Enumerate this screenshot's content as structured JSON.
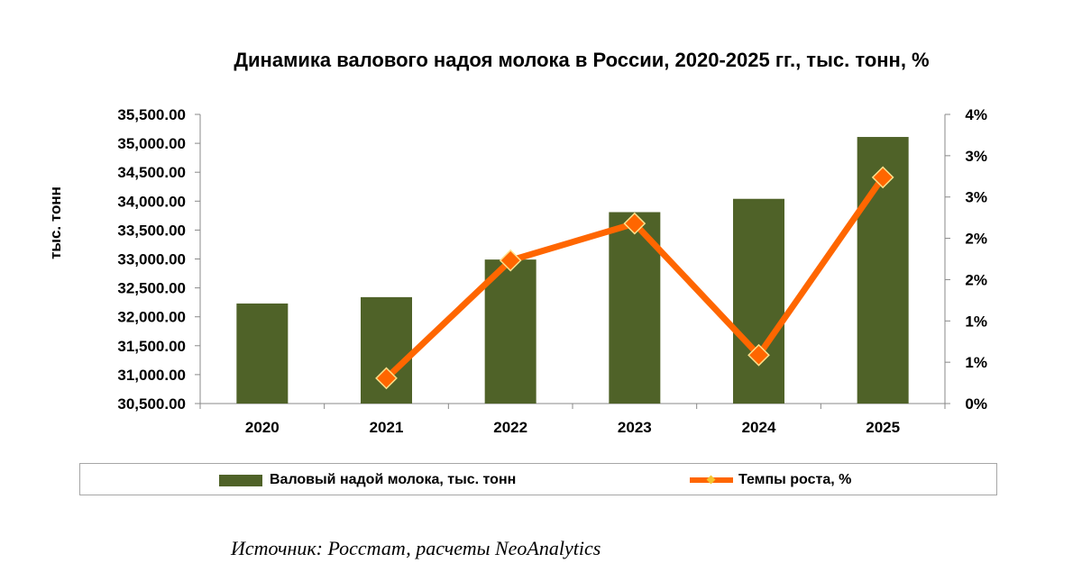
{
  "chart_data": {
    "type": "bar",
    "title": "Динамика валового надоя молока в России, 2020-2025 гг., тыс. тонн, %",
    "ylabel": "тыс. тонн",
    "xlabel": "",
    "categories": [
      "2020",
      "2021",
      "2022",
      "2023",
      "2024",
      "2025"
    ],
    "ylim": [
      30500,
      35500
    ],
    "y2lim": [
      0,
      4
    ],
    "y_ticks": [
      "35,500.00",
      "35,000.00",
      "34,500.00",
      "34,000.00",
      "33,500.00",
      "33,000.00",
      "32,500.00",
      "32,000.00",
      "31,500.00",
      "31,000.00",
      "30,500.00"
    ],
    "y2_ticks": [
      "4%",
      "3%",
      "3%",
      "2%",
      "2%",
      "1%",
      "1%",
      "0%"
    ],
    "series": [
      {
        "name": "Валовый надой молока, тыс. тонн",
        "type": "bar",
        "color": "#4f6228",
        "values": [
          32230,
          32340,
          32990,
          33810,
          34040,
          35110
        ]
      },
      {
        "name": "Темпы роста, %",
        "type": "line",
        "axis": "right",
        "color": "#ff6600",
        "marker_color": "#f4a460",
        "values": [
          null,
          0.35,
          1.98,
          2.49,
          0.67,
          3.13
        ]
      }
    ],
    "grid": false,
    "legend_position": "bottom"
  },
  "source_text": "Источник: Росстат, расчеты NeoAnalytics"
}
